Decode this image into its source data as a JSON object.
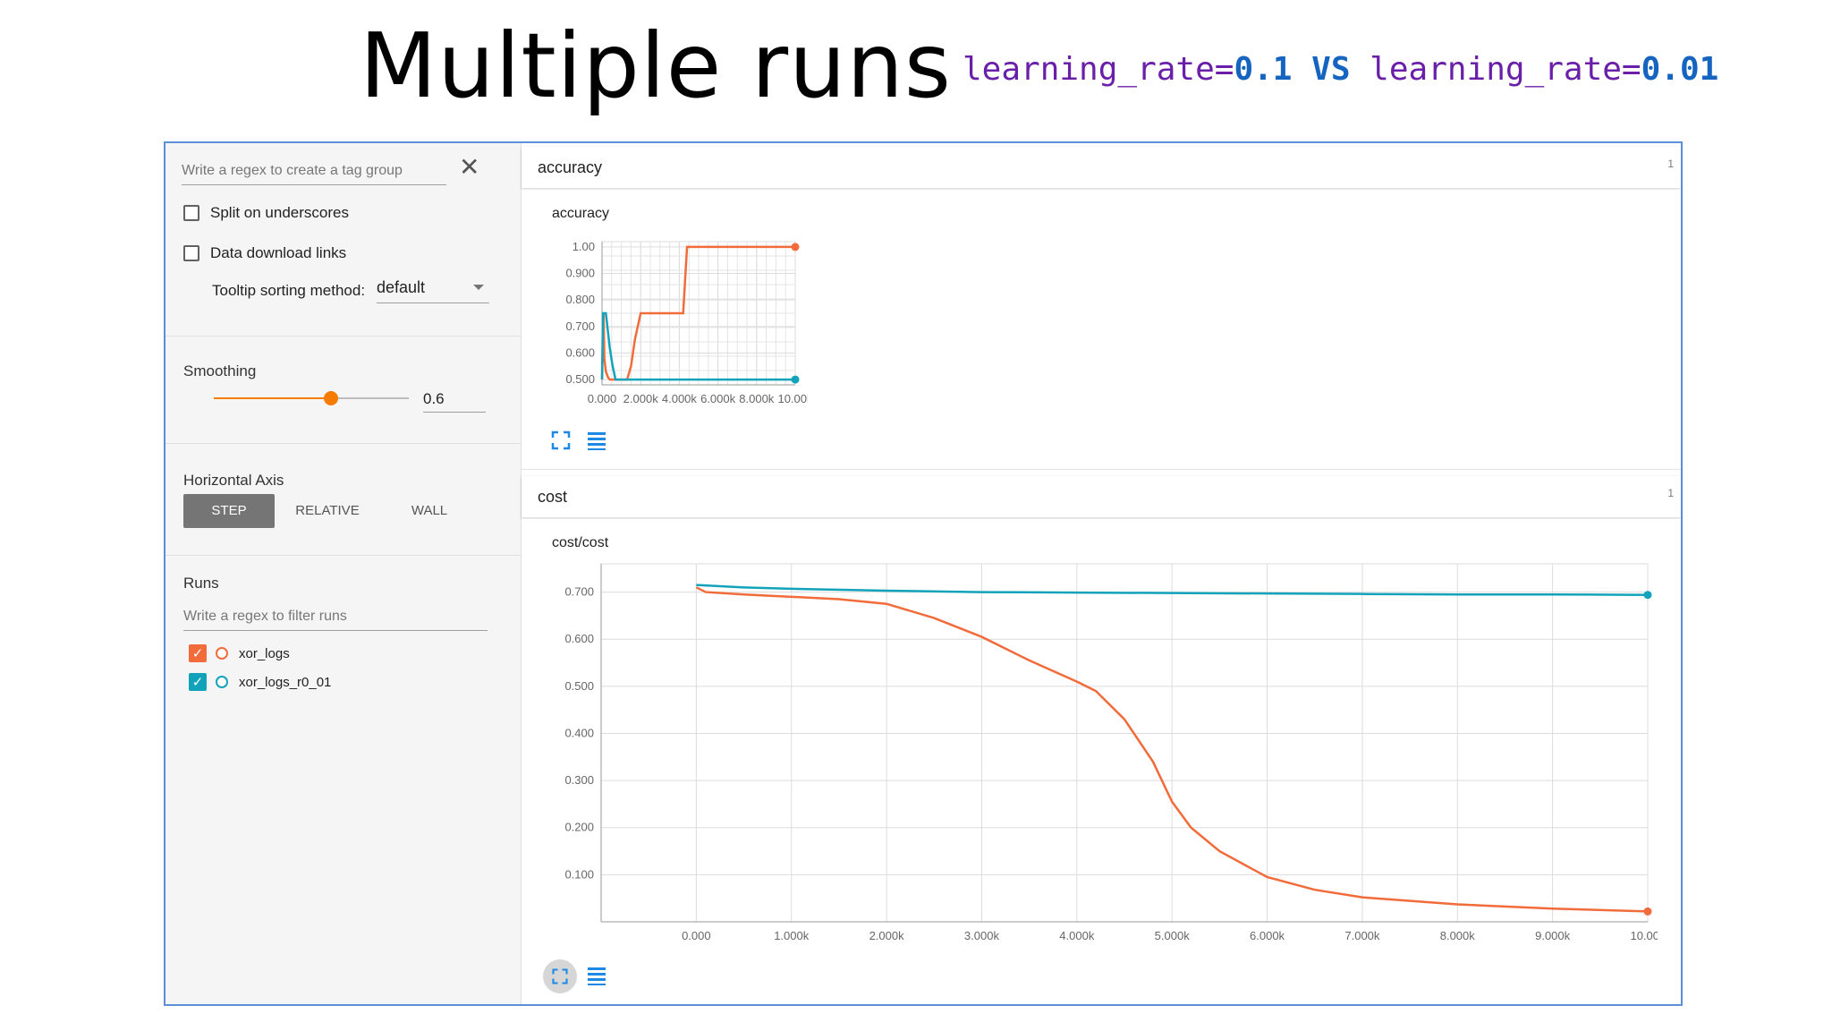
{
  "slide": {
    "title": "Multiple runs",
    "subtitle": {
      "part1": "learning_rate=",
      "val1": "0.1",
      "vs": " VS ",
      "part2": "learning_rate=",
      "val2": "0.01"
    }
  },
  "sidebar": {
    "tag_regex_placeholder": "Write a regex to create a tag group",
    "close_icon": "close-icon",
    "split_underscores": "Split on underscores",
    "data_download": "Data download links",
    "tooltip_label": "Tooltip sorting method:",
    "tooltip_value": "default",
    "smoothing_label": "Smoothing",
    "smoothing_value": "0.6",
    "smoothing_fraction": 0.6,
    "horizontal_axis_label": "Horizontal Axis",
    "axis_options": [
      "STEP",
      "RELATIVE",
      "WALL"
    ],
    "axis_selected": "STEP",
    "runs_label": "Runs",
    "runs_filter_placeholder": "Write a regex to filter runs",
    "runs": [
      {
        "name": "xor_logs",
        "color": "#f26b3a",
        "checked": true
      },
      {
        "name": "xor_logs_r0_01",
        "color": "#12a3bb",
        "checked": true
      }
    ]
  },
  "colors": {
    "run1": "#f26b3a",
    "run2": "#12a3bb",
    "accent": "#f57c00"
  },
  "main": {
    "accuracy_section": {
      "name": "accuracy",
      "count": "1"
    },
    "cost_section": {
      "name": "cost",
      "count": "1"
    }
  },
  "chart_data": [
    {
      "type": "line",
      "title": "accuracy",
      "xlim": [
        0,
        10000
      ],
      "ylim": [
        0.48,
        1.02
      ],
      "x_ticks": [
        "0.000",
        "2.000k",
        "4.000k",
        "6.000k",
        "8.000k",
        "10.00k"
      ],
      "y_ticks": [
        "1.00",
        "0.900",
        "0.800",
        "0.700",
        "0.600",
        "0.500"
      ],
      "y_tick_values": [
        1.0,
        0.9,
        0.8,
        0.7,
        0.6,
        0.5
      ],
      "x_tick_values": [
        0,
        2000,
        4000,
        6000,
        8000,
        10000
      ],
      "grid": true,
      "series": [
        {
          "name": "xor_logs",
          "x": [
            0,
            80,
            120,
            200,
            300,
            400,
            1300,
            1500,
            1700,
            2000,
            3200,
            3400,
            4200,
            4400,
            10000
          ],
          "y": [
            0.5,
            0.75,
            0.58,
            0.53,
            0.51,
            0.5,
            0.5,
            0.55,
            0.65,
            0.75,
            0.75,
            0.75,
            0.75,
            1.0,
            1.0
          ]
        },
        {
          "name": "xor_logs_r0_01",
          "x": [
            0,
            50,
            200,
            400,
            550,
            700,
            10000
          ],
          "y": [
            0.5,
            0.75,
            0.75,
            0.62,
            0.55,
            0.5,
            0.5
          ]
        }
      ]
    },
    {
      "type": "line",
      "title": "cost/cost",
      "xlim": [
        -1000,
        10000
      ],
      "ylim": [
        0.0,
        0.76
      ],
      "x_ticks": [
        "0.000",
        "1.000k",
        "2.000k",
        "3.000k",
        "4.000k",
        "5.000k",
        "6.000k",
        "7.000k",
        "8.000k",
        "9.000k",
        "10.00k"
      ],
      "x_tick_values": [
        0,
        1000,
        2000,
        3000,
        4000,
        5000,
        6000,
        7000,
        8000,
        9000,
        10000
      ],
      "y_ticks": [
        "0.700",
        "0.600",
        "0.500",
        "0.400",
        "0.300",
        "0.200",
        "0.100"
      ],
      "y_tick_values": [
        0.7,
        0.6,
        0.5,
        0.4,
        0.3,
        0.2,
        0.1
      ],
      "grid": true,
      "series": [
        {
          "name": "xor_logs",
          "x": [
            0,
            100,
            500,
            1000,
            1500,
            2000,
            2500,
            3000,
            3500,
            4000,
            4200,
            4500,
            4800,
            5000,
            5200,
            5500,
            6000,
            6500,
            7000,
            8000,
            9000,
            10000
          ],
          "y": [
            0.71,
            0.7,
            0.695,
            0.69,
            0.685,
            0.675,
            0.645,
            0.605,
            0.555,
            0.51,
            0.49,
            0.43,
            0.34,
            0.255,
            0.2,
            0.15,
            0.095,
            0.068,
            0.052,
            0.037,
            0.028,
            0.022
          ]
        },
        {
          "name": "xor_logs_r0_01",
          "x": [
            0,
            500,
            1000,
            2000,
            3000,
            4000,
            5000,
            6000,
            7000,
            8000,
            9000,
            10000
          ],
          "y": [
            0.715,
            0.71,
            0.707,
            0.703,
            0.7,
            0.699,
            0.698,
            0.697,
            0.696,
            0.695,
            0.695,
            0.694
          ]
        }
      ]
    }
  ]
}
